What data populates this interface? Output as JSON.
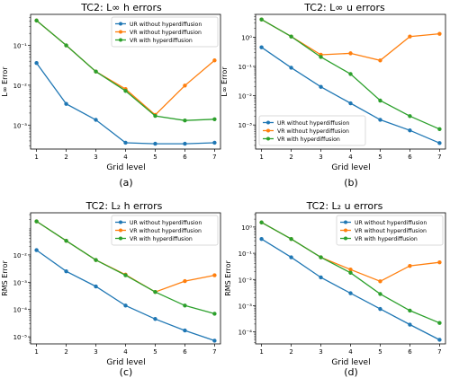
{
  "panels": [
    {
      "title": "TC2:  L∞ h errors",
      "ylabel": "L∞ Error",
      "xlabel": "Grid level",
      "caption": "(a)",
      "legend_position": "top-right"
    },
    {
      "title": "TC2:  L∞ u errors",
      "ylabel": "L∞ Error",
      "xlabel": "Grid level",
      "caption": "(b)",
      "legend_position": "bottom-left"
    },
    {
      "title": "TC2:  L₂ h errors",
      "ylabel": "RMS Error",
      "xlabel": "Grid level",
      "caption": "(c)",
      "legend_position": "top-right"
    },
    {
      "title": "TC2:  L₂ u errors",
      "ylabel": "RMS Error",
      "xlabel": "Grid level",
      "caption": "(d)",
      "legend_position": "top-right"
    }
  ],
  "chart_data": [
    {
      "type": "line",
      "title": "TC2:  L∞ h errors",
      "xlabel": "Grid level",
      "ylabel": "L∞ Error",
      "yscale": "log",
      "x": [
        1,
        2,
        3,
        4,
        5,
        6,
        7
      ],
      "xlim": [
        0.8,
        7.2
      ],
      "ylim": [
        0.00025,
        0.6
      ],
      "yticks": [
        0.001,
        0.01,
        0.1
      ],
      "ytick_labels": [
        "10⁻³",
        "10⁻²",
        "10⁻¹"
      ],
      "legend": "top-right",
      "series": [
        {
          "name": "UR without hyperdiffusion",
          "color": "#1f77b4",
          "values": [
            0.036,
            0.0034,
            0.00135,
            0.00036,
            0.00034,
            0.00034,
            0.00036
          ]
        },
        {
          "name": "VR without hyperdiffusion",
          "color": "#ff7f0e",
          "values": [
            0.42,
            0.1,
            0.022,
            0.008,
            0.0018,
            0.0098,
            0.042
          ]
        },
        {
          "name": "VR with hyperdiffusion",
          "color": "#2ca02c",
          "values": [
            0.42,
            0.1,
            0.022,
            0.0072,
            0.0017,
            0.0013,
            0.0014
          ]
        }
      ]
    },
    {
      "type": "line",
      "title": "TC2:  L∞ u errors",
      "xlabel": "Grid level",
      "ylabel": "L∞ Error",
      "yscale": "log",
      "x": [
        1,
        2,
        3,
        4,
        5,
        6,
        7
      ],
      "xlim": [
        0.8,
        7.2
      ],
      "ylim": [
        0.00015,
        6
      ],
      "yticks": [
        0.001,
        0.01,
        0.1,
        1
      ],
      "ytick_labels": [
        "10⁻³",
        "10⁻²",
        "10⁻¹",
        "10⁰"
      ],
      "legend": "bottom-left",
      "series": [
        {
          "name": "UR without hyperdiffusion",
          "color": "#1f77b4",
          "values": [
            0.45,
            0.09,
            0.02,
            0.0055,
            0.0015,
            0.00065,
            0.00024
          ]
        },
        {
          "name": "VR without hyperdiffusion",
          "color": "#ff7f0e",
          "values": [
            4.0,
            1.05,
            0.25,
            0.28,
            0.16,
            1.05,
            1.3
          ]
        },
        {
          "name": "VR with hyperdiffusion",
          "color": "#2ca02c",
          "values": [
            4.0,
            1.05,
            0.21,
            0.055,
            0.0068,
            0.002,
            0.00072
          ]
        }
      ]
    },
    {
      "type": "line",
      "title": "TC2:  L₂ h errors",
      "xlabel": "Grid level",
      "ylabel": "RMS Error",
      "yscale": "log",
      "x": [
        1,
        2,
        3,
        4,
        5,
        6,
        7
      ],
      "xlim": [
        0.8,
        7.2
      ],
      "ylim": [
        5.5e-06,
        0.35
      ],
      "yticks": [
        1e-05,
        0.0001,
        0.001,
        0.01
      ],
      "ytick_labels": [
        "10⁻⁵",
        "10⁻⁴",
        "10⁻³",
        "10⁻²"
      ],
      "legend": "top-right",
      "series": [
        {
          "name": "UR without hyperdiffusion",
          "color": "#1f77b4",
          "values": [
            0.015,
            0.0025,
            0.0007,
            0.00014,
            4.5e-05,
            1.7e-05,
            7.2e-06
          ]
        },
        {
          "name": "VR without hyperdiffusion",
          "color": "#ff7f0e",
          "values": [
            0.17,
            0.033,
            0.0065,
            0.0019,
            0.00044,
            0.0011,
            0.0018
          ]
        },
        {
          "name": "VR with hyperdiffusion",
          "color": "#2ca02c",
          "values": [
            0.17,
            0.033,
            0.0065,
            0.0018,
            0.00044,
            0.00014,
            7e-05
          ]
        }
      ]
    },
    {
      "type": "line",
      "title": "TC2:  L₂ u errors",
      "xlabel": "Grid level",
      "ylabel": "RMS Error",
      "yscale": "log",
      "x": [
        1,
        2,
        3,
        4,
        5,
        6,
        7
      ],
      "xlim": [
        0.8,
        7.2
      ],
      "ylim": [
        3.5e-05,
        3.5
      ],
      "yticks": [
        0.0001,
        0.001,
        0.01,
        0.1,
        1
      ],
      "ytick_labels": [
        "10⁻⁴",
        "10⁻³",
        "10⁻²",
        "10⁻¹",
        "10⁰"
      ],
      "legend": "top-right",
      "series": [
        {
          "name": "UR without hyperdiffusion",
          "color": "#1f77b4",
          "values": [
            0.35,
            0.07,
            0.012,
            0.003,
            0.00075,
            0.00019,
            5e-05
          ]
        },
        {
          "name": "VR without hyperdiffusion",
          "color": "#ff7f0e",
          "values": [
            1.5,
            0.35,
            0.07,
            0.024,
            0.0085,
            0.033,
            0.045
          ]
        },
        {
          "name": "VR with hyperdiffusion",
          "color": "#2ca02c",
          "values": [
            1.5,
            0.35,
            0.07,
            0.018,
            0.0028,
            0.00065,
            0.00022
          ]
        }
      ]
    }
  ]
}
